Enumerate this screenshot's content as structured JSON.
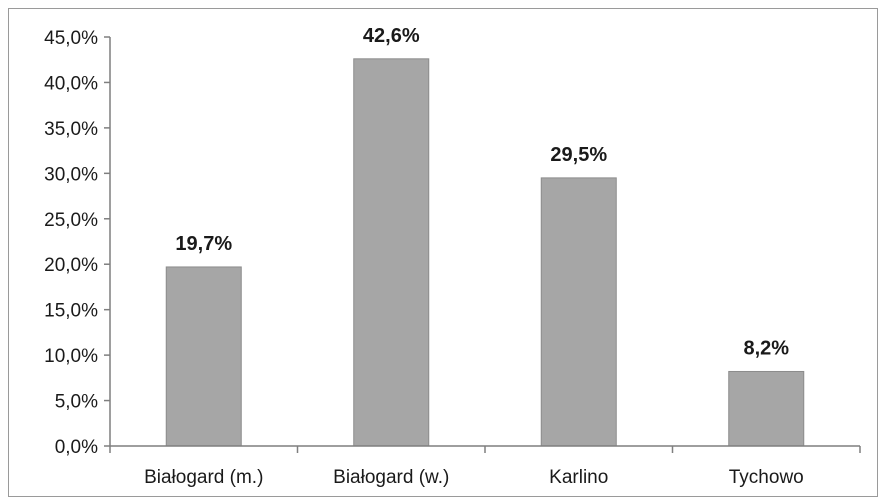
{
  "chart_data": {
    "type": "bar",
    "categories": [
      "Białogard (m.)",
      "Białogard (w.)",
      "Karlino",
      "Tychowo"
    ],
    "values": [
      19.7,
      42.6,
      29.5,
      8.2
    ],
    "data_labels": [
      "19,7%",
      "42,6%",
      "29,5%",
      "8,2%"
    ],
    "title": "",
    "xlabel": "",
    "ylabel": "",
    "ylim": [
      0,
      45
    ],
    "ytick_values": [
      0,
      5,
      10,
      15,
      20,
      25,
      30,
      35,
      40,
      45
    ],
    "ytick_labels": [
      "0,0%",
      "5,0%",
      "10,0%",
      "15,0%",
      "20,0%",
      "25,0%",
      "30,0%",
      "35,0%",
      "40,0%",
      "45,0%"
    ],
    "grid": false,
    "legend": "none",
    "bar_color": "#a6a6a6",
    "bar_edge_color": "#8c8c8c",
    "axis_color": "#7f7f7f"
  }
}
